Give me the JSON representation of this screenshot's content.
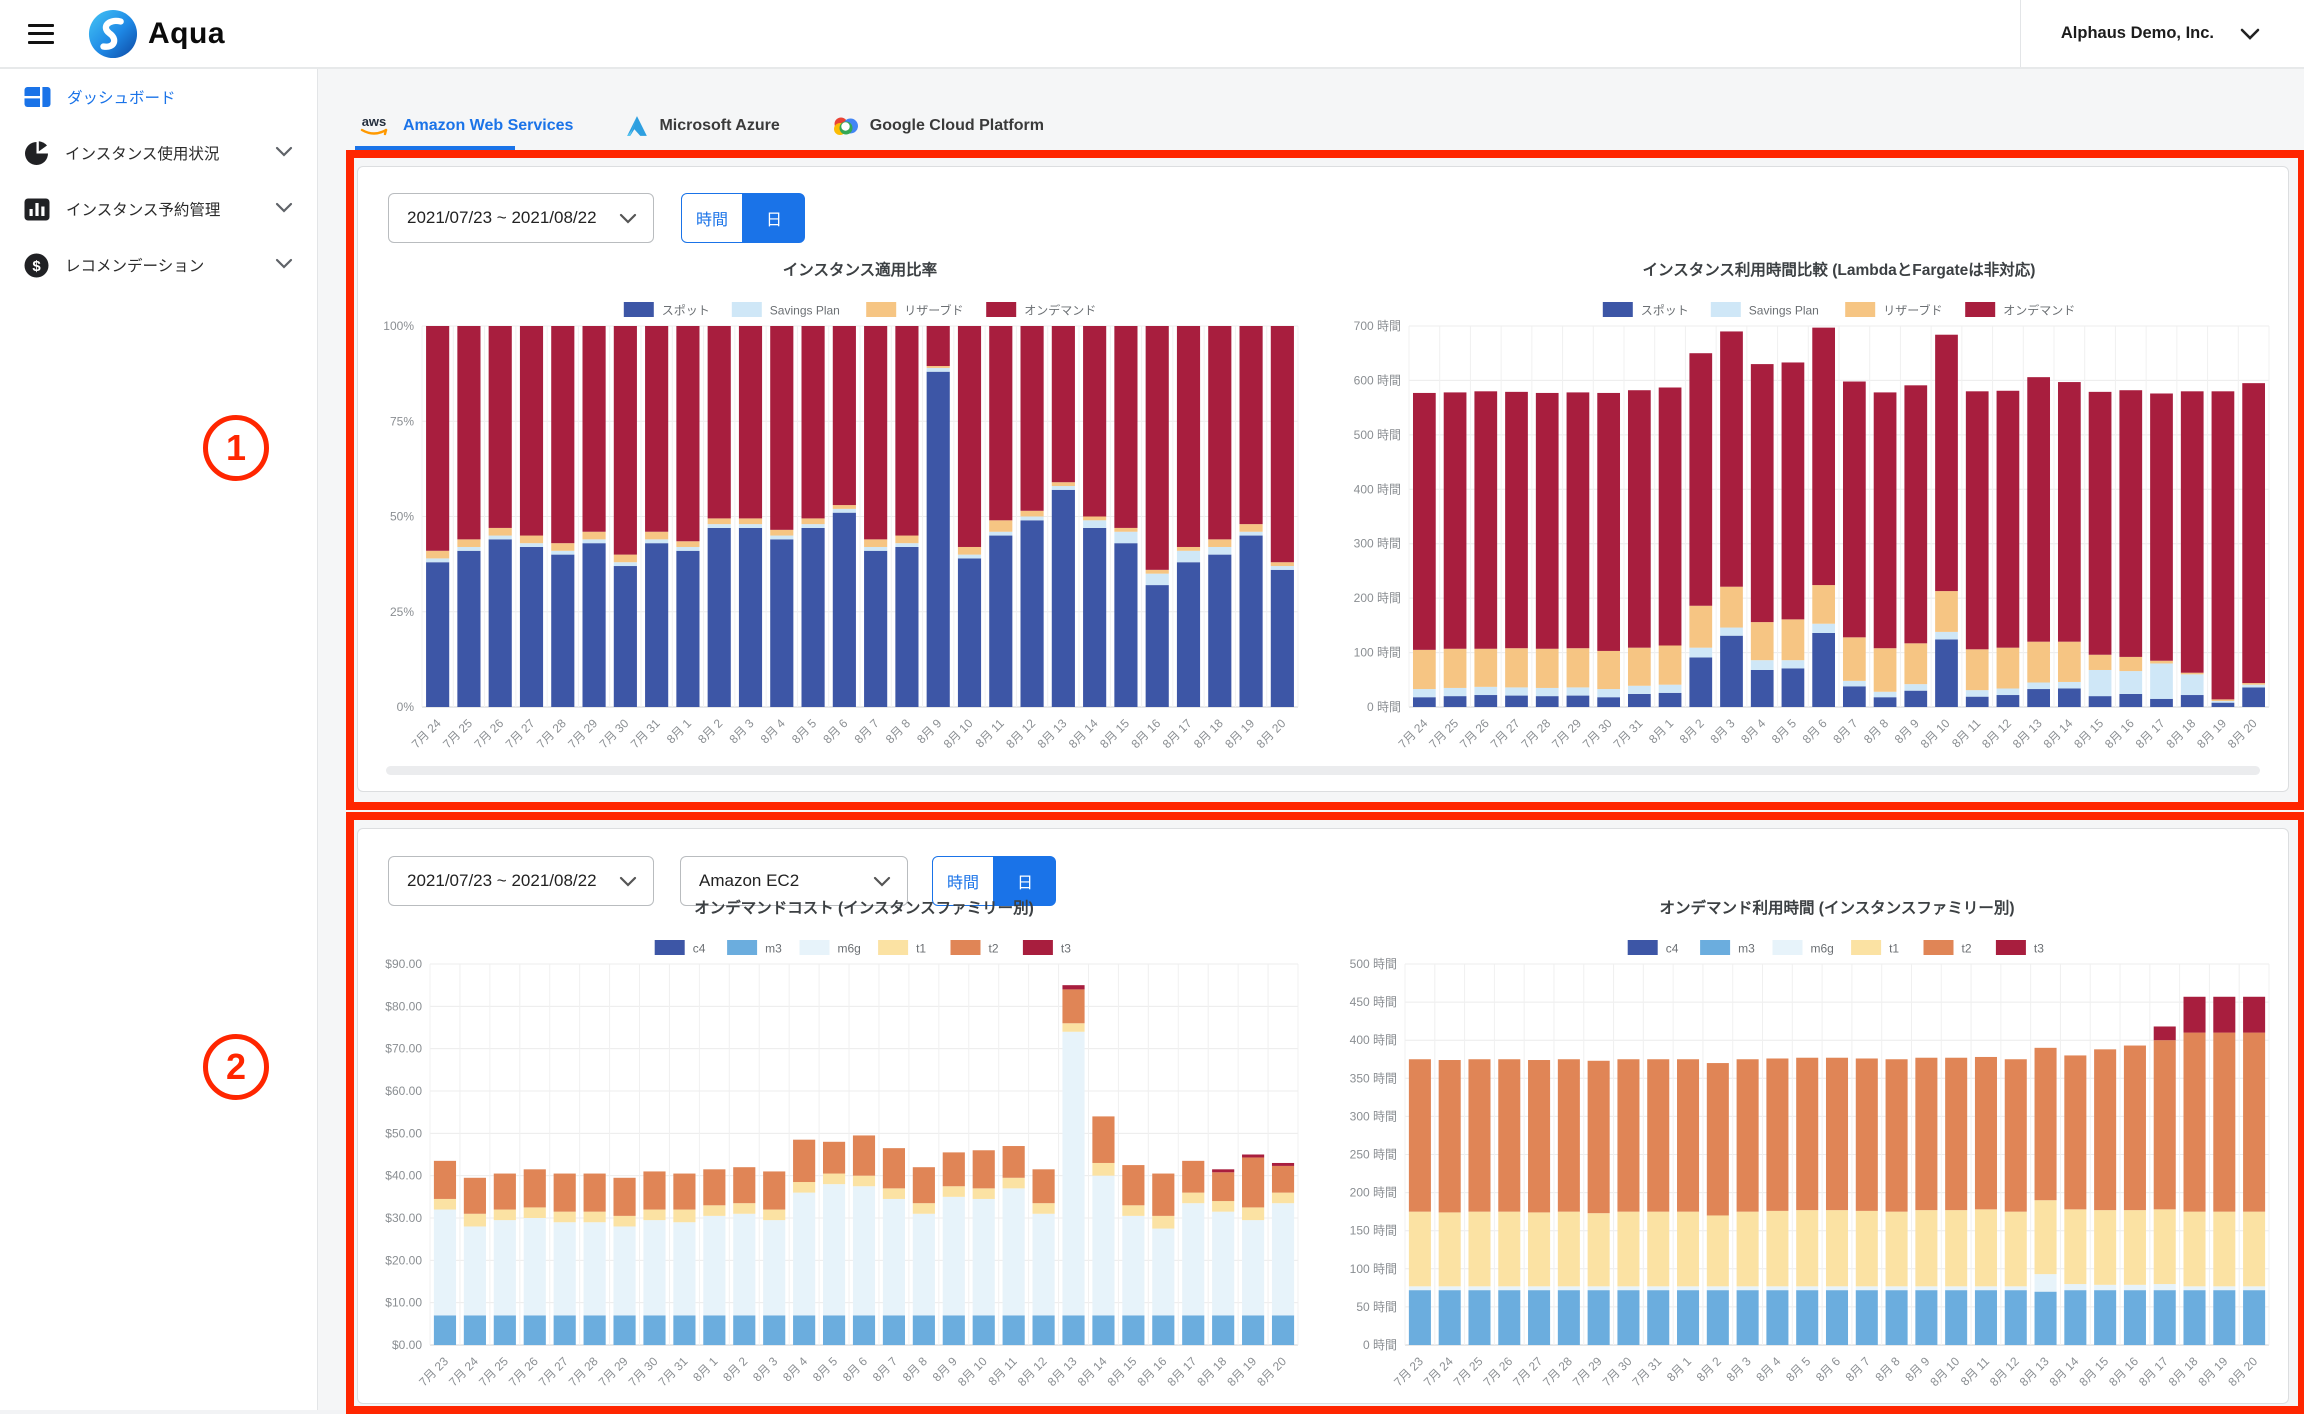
{
  "header": {
    "brand": "Aqua",
    "account": "Alphaus Demo, Inc."
  },
  "sidebar": {
    "items": [
      {
        "label": "ダッシュボード",
        "icon": "dashboard-icon",
        "active": true,
        "expandable": false
      },
      {
        "label": "インスタンス使用状況",
        "icon": "pie-chart-icon",
        "active": false,
        "expandable": true
      },
      {
        "label": "インスタンス予約管理",
        "icon": "bar-chart-icon",
        "active": false,
        "expandable": true
      },
      {
        "label": "レコメンデーション",
        "icon": "dollar-icon",
        "active": false,
        "expandable": true
      }
    ]
  },
  "tabs": [
    {
      "label": "Amazon Web Services",
      "icon": "aws-icon",
      "active": true
    },
    {
      "label": "Microsoft Azure",
      "icon": "azure-icon",
      "active": false
    },
    {
      "label": "Google Cloud Platform",
      "icon": "gcp-icon",
      "active": false
    }
  ],
  "section1": {
    "annotation": "1",
    "date_range": "2021/07/23 ~ 2021/08/22",
    "toggle_hour": "時間",
    "toggle_day": "日",
    "active_toggle": "日"
  },
  "section2": {
    "annotation": "2",
    "date_range": "2021/07/23 ~ 2021/08/22",
    "service": "Amazon EC2",
    "toggle_hour": "時間",
    "toggle_day": "日",
    "active_toggle": "日"
  },
  "colors": {
    "accent": "#1a73e8",
    "annotation": "#ff2600",
    "spot": "#3d56a6",
    "savings_plan": "#cfe7f7",
    "reserved": "#f6c583",
    "ondemand": "#a81e3e",
    "c4": "#3d56a6",
    "m3": "#6badde",
    "m6g": "#e7f3fa",
    "t1": "#fbe2a3",
    "t2": "#e08556",
    "t3": "#a81e3e"
  },
  "chart_data": [
    {
      "id": "ratio",
      "type": "bar",
      "stacked": true,
      "percent": true,
      "title": "インスタンス適用比率",
      "ylim": [
        0,
        100
      ],
      "ystep": 25,
      "yformat": "percent",
      "grid": true,
      "legend_position": "top",
      "categories": [
        "7月 24",
        "7月 25",
        "7月 26",
        "7月 27",
        "7月 28",
        "7月 29",
        "7月 30",
        "7月 31",
        "8月 1",
        "8月 2",
        "8月 3",
        "8月 4",
        "8月 5",
        "8月 6",
        "8月 7",
        "8月 8",
        "8月 9",
        "8月 10",
        "8月 11",
        "8月 12",
        "8月 13",
        "8月 14",
        "8月 15",
        "8月 16",
        "8月 17",
        "8月 18",
        "8月 19",
        "8月 20"
      ],
      "series": [
        {
          "name": "スポット",
          "color": "#3d56a6",
          "values": [
            38,
            41,
            44,
            42,
            40,
            43,
            37,
            43,
            41,
            47,
            47,
            44,
            47,
            51,
            41,
            42,
            88,
            39,
            45,
            49,
            57,
            47,
            43,
            32,
            38,
            40,
            45,
            36
          ]
        },
        {
          "name": "Savings Plan",
          "color": "#cfe7f7",
          "values": [
            1,
            1,
            1,
            1,
            1,
            1,
            1,
            1,
            1,
            1,
            1,
            1,
            1,
            1,
            1,
            1,
            1,
            1,
            1,
            1,
            1,
            2,
            3,
            3,
            3,
            2,
            1,
            1
          ]
        },
        {
          "name": "リザーブド",
          "color": "#f6c583",
          "values": [
            2,
            2,
            2,
            2,
            2,
            2,
            2,
            2,
            1.5,
            1.5,
            1.5,
            1.5,
            1.5,
            1,
            2,
            2,
            0.5,
            2,
            3,
            1.5,
            1,
            1,
            1,
            1,
            1,
            2,
            2,
            1
          ]
        },
        {
          "name": "オンデマンド",
          "color": "#a81e3e",
          "values": [
            59,
            56,
            53,
            55,
            57,
            54,
            60,
            54,
            56.5,
            50.5,
            50.5,
            53.5,
            50.5,
            47,
            56,
            55,
            10.5,
            58,
            51,
            48.5,
            41,
            50,
            53,
            64,
            58,
            56,
            52,
            62
          ]
        }
      ]
    },
    {
      "id": "hours",
      "type": "bar",
      "stacked": true,
      "title": "インスタンス利用時間比較 (LambdaとFargateは非対応)",
      "ylim": [
        0,
        700
      ],
      "ystep": 100,
      "yformat": "hours",
      "grid": true,
      "legend_position": "top",
      "categories": [
        "7月 24",
        "7月 25",
        "7月 26",
        "7月 27",
        "7月 28",
        "7月 29",
        "7月 30",
        "7月 31",
        "8月 1",
        "8月 2",
        "8月 3",
        "8月 4",
        "8月 5",
        "8月 6",
        "8月 7",
        "8月 8",
        "8月 9",
        "8月 10",
        "8月 11",
        "8月 12",
        "8月 13",
        "8月 14",
        "8月 15",
        "8月 16",
        "8月 17",
        "8月 18",
        "8月 19",
        "8月 20"
      ],
      "series": [
        {
          "name": "スポット",
          "color": "#3d56a6",
          "values": [
            18,
            20,
            22,
            21,
            20,
            21,
            18,
            24,
            26,
            91,
            131,
            68,
            71,
            136,
            38,
            18,
            30,
            124,
            19,
            22,
            33,
            34,
            20,
            24,
            15,
            22,
            8,
            36
          ]
        },
        {
          "name": "Savings Plan",
          "color": "#cfe7f7",
          "values": [
            15,
            15,
            15,
            15,
            15,
            15,
            15,
            15,
            15,
            18,
            15,
            18,
            15,
            17,
            10,
            10,
            12,
            14,
            12,
            12,
            12,
            12,
            48,
            42,
            65,
            38,
            3,
            5
          ]
        },
        {
          "name": "リザーブド",
          "color": "#f6c583",
          "values": [
            72,
            72,
            70,
            72,
            72,
            72,
            70,
            70,
            72,
            77,
            75,
            70,
            75,
            71,
            80,
            80,
            75,
            75,
            75,
            75,
            75,
            74,
            28,
            26,
            5,
            3,
            3,
            3
          ]
        },
        {
          "name": "オンデマンド",
          "color": "#a81e3e",
          "values": [
            472,
            471,
            473,
            471,
            470,
            470,
            474,
            473,
            474,
            464,
            469,
            474,
            472,
            473,
            470,
            470,
            474,
            471,
            474,
            472,
            486,
            477,
            483,
            490,
            491,
            517,
            566,
            551
          ]
        }
      ]
    },
    {
      "id": "cost",
      "type": "bar",
      "stacked": true,
      "title": "オンデマンドコスト (インスタンスファミリー別)",
      "ylim": [
        0,
        90
      ],
      "ystep": 10,
      "yformat": "dollars",
      "grid": true,
      "legend_position": "top",
      "categories": [
        "7月 23",
        "7月 24",
        "7月 25",
        "7月 26",
        "7月 27",
        "7月 28",
        "7月 29",
        "7月 30",
        "7月 31",
        "8月 1",
        "8月 2",
        "8月 3",
        "8月 4",
        "8月 5",
        "8月 6",
        "8月 7",
        "8月 8",
        "8月 9",
        "8月 10",
        "8月 11",
        "8月 12",
        "8月 13",
        "8月 14",
        "8月 15",
        "8月 16",
        "8月 17",
        "8月 18",
        "8月 19",
        "8月 20"
      ],
      "series": [
        {
          "name": "c4",
          "color": "#3d56a6",
          "values": [
            0,
            0,
            0,
            0,
            0,
            0,
            0,
            0,
            0,
            0,
            0,
            0,
            0,
            0,
            0,
            0,
            0,
            0,
            0,
            0,
            0,
            0,
            0,
            0,
            0,
            0,
            0,
            0,
            0
          ]
        },
        {
          "name": "m3",
          "color": "#6badde",
          "values": [
            7,
            7,
            7,
            7,
            7,
            7,
            7,
            7,
            7,
            7,
            7,
            7,
            7,
            7,
            7,
            7,
            7,
            7,
            7,
            7,
            7,
            7,
            7,
            7,
            7,
            7,
            7,
            7,
            7
          ]
        },
        {
          "name": "m6g",
          "color": "#e7f3fa",
          "values": [
            25,
            21,
            22.5,
            23,
            22,
            22,
            21,
            22.5,
            22,
            23.5,
            24,
            22.5,
            29,
            31,
            30.5,
            27.5,
            24,
            28,
            27.5,
            30,
            24,
            67,
            33,
            23.5,
            20.5,
            26.5,
            24.5,
            22.5,
            26.5
          ]
        },
        {
          "name": "t1",
          "color": "#fbe2a3",
          "values": [
            2.5,
            3,
            2.5,
            2.5,
            2.5,
            2.5,
            2.5,
            2.5,
            3,
            2.5,
            2.5,
            2.5,
            2.5,
            2.5,
            2.5,
            2.5,
            2.5,
            2.5,
            2.5,
            2.5,
            2.5,
            2,
            3,
            2.5,
            3,
            2.5,
            2.5,
            3,
            2.5
          ]
        },
        {
          "name": "t2",
          "color": "#e08556",
          "values": [
            9,
            8.5,
            8.5,
            9,
            9,
            9,
            9,
            9,
            8.5,
            8.5,
            8.5,
            9,
            10,
            7.5,
            9.5,
            9.5,
            8.5,
            8,
            9,
            7.5,
            8,
            8,
            11,
            9.5,
            10,
            7.5,
            6.8,
            11.8,
            6.3
          ]
        },
        {
          "name": "t3",
          "color": "#a81e3e",
          "values": [
            0,
            0,
            0,
            0,
            0,
            0,
            0,
            0,
            0,
            0,
            0,
            0,
            0,
            0,
            0,
            0,
            0,
            0,
            0,
            0,
            0,
            1,
            0,
            0,
            0,
            0,
            0.7,
            0.7,
            0.7
          ]
        }
      ]
    },
    {
      "id": "odhours",
      "type": "bar",
      "stacked": true,
      "title": "オンデマンド利用時間 (インスタンスファミリー別)",
      "ylim": [
        0,
        500
      ],
      "ystep": 50,
      "yformat": "hours",
      "grid": true,
      "legend_position": "top",
      "categories": [
        "7月 23",
        "7月 24",
        "7月 25",
        "7月 26",
        "7月 27",
        "7月 28",
        "7月 29",
        "7月 30",
        "7月 31",
        "8月 1",
        "8月 2",
        "8月 3",
        "8月 4",
        "8月 5",
        "8月 6",
        "8月 7",
        "8月 8",
        "8月 9",
        "8月 10",
        "8月 11",
        "8月 12",
        "8月 13",
        "8月 14",
        "8月 15",
        "8月 16",
        "8月 17",
        "8月 18",
        "8月 19",
        "8月 20"
      ],
      "series": [
        {
          "name": "c4",
          "color": "#3d56a6",
          "values": [
            0,
            0,
            0,
            0,
            0,
            0,
            0,
            0,
            0,
            0,
            0,
            0,
            0,
            0,
            0,
            0,
            0,
            0,
            0,
            0,
            0,
            0,
            0,
            0,
            0,
            0,
            0,
            0,
            0
          ]
        },
        {
          "name": "m3",
          "color": "#6badde",
          "values": [
            72,
            72,
            72,
            72,
            72,
            72,
            72,
            72,
            72,
            72,
            72,
            72,
            72,
            72,
            72,
            72,
            72,
            72,
            72,
            72,
            72,
            70,
            72,
            72,
            72,
            72,
            72,
            72,
            72
          ]
        },
        {
          "name": "m6g",
          "color": "#e7f3fa",
          "values": [
            5,
            5,
            5,
            5,
            5,
            5,
            5,
            5,
            5,
            5,
            5,
            5,
            5,
            5,
            5,
            5,
            5,
            5,
            5,
            5,
            5,
            23,
            8,
            7,
            7,
            8,
            5,
            5,
            5
          ]
        },
        {
          "name": "t1",
          "color": "#fbe2a3",
          "values": [
            98,
            97,
            98,
            98,
            97,
            98,
            96,
            98,
            98,
            98,
            93,
            98,
            99,
            100,
            100,
            99,
            98,
            100,
            100,
            101,
            98,
            97,
            98,
            98,
            98,
            98,
            98,
            98,
            98
          ]
        },
        {
          "name": "t2",
          "color": "#e08556",
          "values": [
            200,
            200,
            200,
            200,
            200,
            200,
            200,
            200,
            200,
            200,
            200,
            200,
            200,
            200,
            200,
            200,
            200,
            200,
            200,
            200,
            200,
            200,
            202,
            211,
            216,
            222,
            235,
            235,
            235
          ]
        },
        {
          "name": "t3",
          "color": "#a81e3e",
          "values": [
            0,
            0,
            0,
            0,
            0,
            0,
            0,
            0,
            0,
            0,
            0,
            0,
            0,
            0,
            0,
            0,
            0,
            0,
            0,
            0,
            0,
            0,
            0,
            0,
            0,
            18,
            47,
            47,
            47
          ]
        }
      ]
    }
  ]
}
